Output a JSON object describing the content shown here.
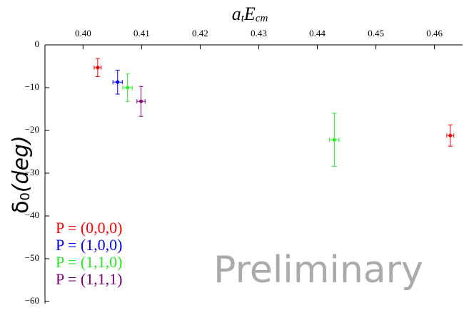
{
  "chart_data": {
    "type": "scatter",
    "x_label_parts": [
      "a",
      "t",
      "E",
      "cm"
    ],
    "y_label_parts": [
      "δ",
      "0",
      "(deg)"
    ],
    "annotation": "Preliminary",
    "xlim": [
      0.3935,
      0.4648
    ],
    "ylim": [
      -60,
      0
    ],
    "xticks": [
      {
        "value": 0.4,
        "label": "0.40"
      },
      0.41,
      0.42,
      0.43,
      0.44,
      0.45,
      0.46
    ],
    "yticks": [
      0,
      {
        "value": -10,
        "label": "−10"
      },
      {
        "value": -20,
        "label": "−20"
      },
      {
        "value": -30,
        "label": "−30"
      },
      {
        "value": -40,
        "label": "−40"
      },
      {
        "value": -50,
        "label": "−50"
      },
      {
        "value": -60,
        "label": "−60"
      }
    ],
    "series": [
      {
        "name": "P = (0,0,0)",
        "color": "#ff0000",
        "x": [
          0.4025,
          0.4627
        ],
        "values": [
          -5.3,
          -21.2
        ],
        "xerr": [
          0.0006,
          0.0006
        ],
        "yerr": [
          2.1,
          2.5
        ]
      },
      {
        "name": "P = (1,0,0)",
        "color": "#0000ff",
        "x": [
          0.4059
        ],
        "values": [
          -8.7
        ],
        "xerr": [
          0.0008
        ],
        "yerr": [
          2.8
        ]
      },
      {
        "name": "P = (1,1,0)",
        "color": "#22ee22",
        "x": [
          0.4076,
          0.4429
        ],
        "values": [
          -10,
          -22.2
        ],
        "xerr": [
          0.0008,
          0.0008
        ],
        "yerr": [
          3.2,
          6.2
        ]
      },
      {
        "name": "P = (1,1,1)",
        "color": "#800080",
        "x": [
          0.4099
        ],
        "values": [
          -13.2
        ],
        "xerr": [
          0.0007
        ],
        "yerr": [
          3.5
        ]
      }
    ]
  }
}
